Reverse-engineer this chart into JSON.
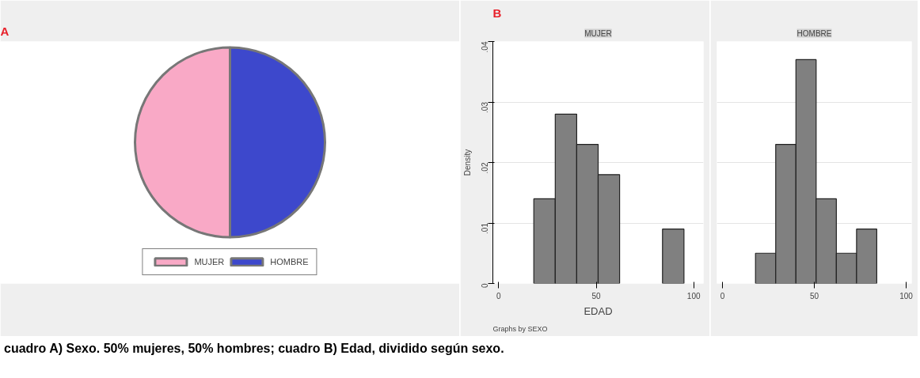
{
  "chart_data": [
    {
      "type": "pie",
      "categories": [
        "MUJER",
        "HOMBRE"
      ],
      "values": [
        50,
        50
      ],
      "colors": [
        "#f9a9c6",
        "#3d48cc"
      ],
      "legend": "bottom",
      "annotations": [
        "A",
        "cuadro A) Sexo. 50% mujeres, 50% hombres;  cuadro B) Edad, dividido según sexo."
      ]
    },
    {
      "type": "histogram",
      "title": "MUJER",
      "bins": [
        18,
        29,
        40,
        51,
        62,
        73,
        84,
        95
      ],
      "values": [
        0.014,
        0.028,
        0.023,
        0.018,
        0,
        0,
        0.009
      ],
      "color": "#808080",
      "xlim": [
        -3,
        105
      ],
      "ylim": [
        0,
        0.04
      ],
      "xticks": [
        0,
        50,
        100
      ],
      "yticks": [
        0,
        {
          "value": 0.01,
          "label": ".01"
        },
        {
          "value": 0.02,
          "label": ".02"
        },
        {
          "value": 0.03,
          "label": ".03"
        },
        {
          "value": 0.04,
          "label": ".04"
        }
      ],
      "xlabel": "EDAD",
      "ylabel": "Density",
      "grid": "y",
      "annotations": [
        "B",
        "Graphs by SEXO"
      ]
    },
    {
      "type": "histogram",
      "title": "HOMBRE",
      "bins": [
        18,
        29,
        40,
        51,
        62,
        73,
        84
      ],
      "values": [
        0.005,
        0.023,
        0.037,
        0.014,
        0.005,
        0.009
      ],
      "color": "#808080",
      "xlim": [
        -3,
        103
      ],
      "ylim": [
        0,
        0.04
      ],
      "xticks": [
        0,
        50,
        100
      ],
      "grid": "y",
      "tick_labels": "x",
      "yticks": [
        0,
        0.01,
        0.02,
        0.03,
        0.04
      ]
    }
  ]
}
